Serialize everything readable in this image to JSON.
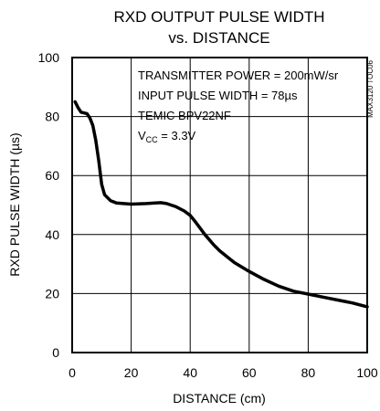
{
  "chart_data": {
    "type": "line",
    "title_lines": [
      "RXD OUTPUT PULSE WIDTH",
      "vs. DISTANCE"
    ],
    "xlabel": "DISTANCE (cm)",
    "ylabel": "RXD PULSE WIDTH (µs)",
    "side_label": "MAX3120 TOC06",
    "xlim": [
      0,
      100
    ],
    "ylim": [
      0,
      100
    ],
    "x_ticks": [
      0,
      20,
      40,
      60,
      80,
      100
    ],
    "y_ticks": [
      0,
      20,
      40,
      60,
      80,
      100
    ],
    "grid": true,
    "legend": "none",
    "annotations": [
      "TRANSMITTER POWER = 200mW/sr",
      "INPUT PULSE WIDTH = 78µs",
      "TEMIC BPV22NF"
    ],
    "vcc_annotation": {
      "prefix": "V",
      "sub": "CC",
      "rest": " = 3.3V"
    },
    "series": [
      {
        "values": [
          [
            1,
            85
          ],
          [
            2,
            83
          ],
          [
            3,
            81.5
          ],
          [
            5,
            81
          ],
          [
            6,
            79.5
          ],
          [
            7,
            77
          ],
          [
            8,
            72
          ],
          [
            9,
            65
          ],
          [
            10,
            57
          ],
          [
            11,
            53.5
          ],
          [
            13,
            51.5
          ],
          [
            15,
            50.7
          ],
          [
            20,
            50.3
          ],
          [
            25,
            50.5
          ],
          [
            30,
            50.8
          ],
          [
            32,
            50.5
          ],
          [
            35,
            49.5
          ],
          [
            38,
            48
          ],
          [
            40,
            46.5
          ],
          [
            42,
            44
          ],
          [
            45,
            40
          ],
          [
            48,
            36.5
          ],
          [
            50,
            34.5
          ],
          [
            55,
            30.5
          ],
          [
            60,
            27.5
          ],
          [
            65,
            24.8
          ],
          [
            70,
            22.5
          ],
          [
            75,
            20.8
          ],
          [
            80,
            19.8
          ],
          [
            85,
            18.8
          ],
          [
            90,
            17.8
          ],
          [
            95,
            16.8
          ],
          [
            100,
            15.5
          ]
        ]
      }
    ]
  }
}
